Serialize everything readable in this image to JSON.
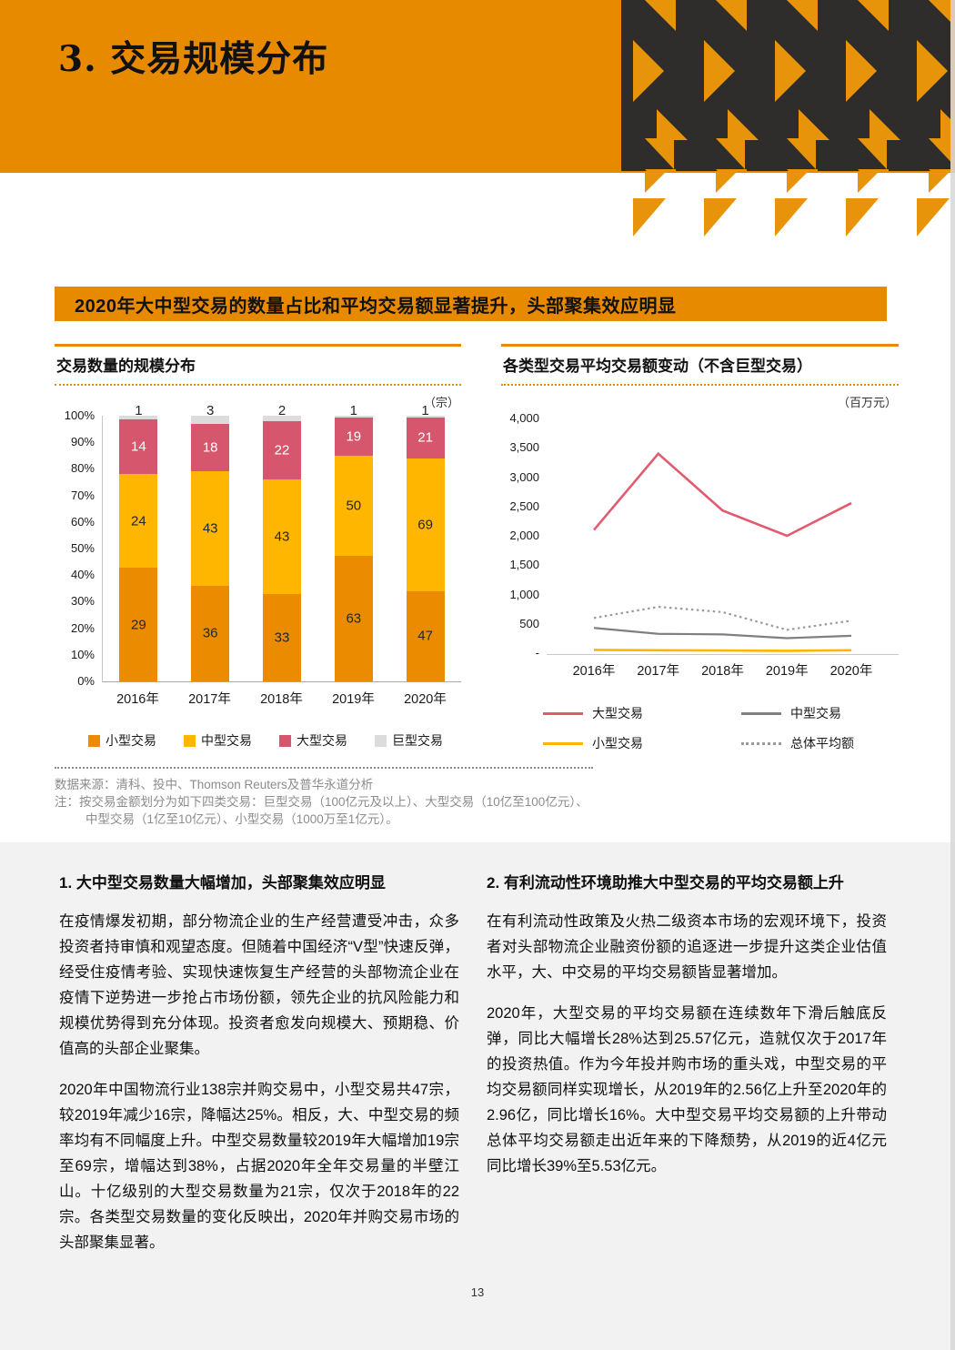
{
  "page": {
    "number": "13"
  },
  "header": {
    "title": "3. 交易规模分布"
  },
  "banner": {
    "text": "2020年大中型交易的数量占比和平均交易额显著提升，头部聚集效应明显"
  },
  "colors": {
    "accent_orange": "#E88A00",
    "pattern_dark": "#2E2D2C",
    "section_bg": "#F2F2F2"
  },
  "chart_data": [
    {
      "type": "bar",
      "stacked": true,
      "percent_axis": true,
      "title": "交易数量的规模分布",
      "unit": "（宗）",
      "categories": [
        "2016年",
        "2017年",
        "2018年",
        "2019年",
        "2020年"
      ],
      "series": [
        {
          "name": "小型交易",
          "color": "#EB8C00",
          "values": [
            29,
            36,
            33,
            63,
            47
          ]
        },
        {
          "name": "中型交易",
          "color": "#FFB600",
          "values": [
            24,
            43,
            43,
            50,
            69
          ]
        },
        {
          "name": "大型交易",
          "color": "#D6566D",
          "label_color": "#FFFFFF",
          "values": [
            14,
            18,
            22,
            19,
            21
          ]
        },
        {
          "name": "巨型交易",
          "color": "#DCDCDC",
          "values": [
            1,
            3,
            2,
            1,
            1
          ]
        }
      ],
      "yticks": [
        "100%",
        "90%",
        "80%",
        "70%",
        "60%",
        "50%",
        "40%",
        "30%",
        "20%",
        "10%",
        "0%"
      ],
      "ylim": [
        0,
        100
      ],
      "legend_position": "bottom",
      "grid": false
    },
    {
      "type": "line",
      "title": "各类型交易平均交易额变动（不含巨型交易）",
      "unit": "（百万元）",
      "x": [
        "2016年",
        "2017年",
        "2018年",
        "2019年",
        "2020年"
      ],
      "ylim": [
        0,
        4000
      ],
      "yticks": [
        "4,000",
        "3,500",
        "3,000",
        "2,500",
        "2,000",
        "1,500",
        "1,000",
        "500",
        "-"
      ],
      "series": [
        {
          "name": "大型交易",
          "color": "#E25A6E",
          "style": "solid",
          "width": 2.6,
          "values": [
            2100,
            3400,
            2430,
            2000,
            2557
          ]
        },
        {
          "name": "中型交易",
          "color": "#7F7F7F",
          "style": "solid",
          "width": 2.2,
          "values": [
            430,
            330,
            320,
            256,
            296
          ]
        },
        {
          "name": "小型交易",
          "color": "#FFB600",
          "style": "solid",
          "width": 2.6,
          "values": [
            55,
            50,
            45,
            40,
            50
          ]
        },
        {
          "name": "总体平均额",
          "color": "#9A9A9A",
          "style": "dotted",
          "width": 2.2,
          "values": [
            600,
            790,
            700,
            398,
            553
          ]
        }
      ],
      "legend_position": "bottom",
      "grid": false
    }
  ],
  "notes": {
    "source": "数据来源：清科、投中、Thomson Reuters及普华永道分析",
    "note_line1": "注：按交易金额划分为如下四类交易：巨型交易（100亿元及以上）、大型交易（10亿至100亿元）、",
    "note_line2": "中型交易（1亿至10亿元）、小型交易（1000万至1亿元）。"
  },
  "sections": [
    {
      "heading": "1. 大中型交易数量大幅增加，头部聚集效应明显",
      "paragraphs": [
        "在疫情爆发初期，部分物流企业的生产经营遭受冲击，众多投资者持审慎和观望态度。但随着中国经济“V型”快速反弹，经受住疫情考验、实现快速恢复生产经营的头部物流企业在疫情下逆势进一步抢占市场份额，领先企业的抗风险能力和规模优势得到充分体现。投资者愈发向规模大、预期稳、价值高的头部企业聚集。",
        "2020年中国物流行业138宗并购交易中，小型交易共47宗，较2019年减少16宗，降幅达25%。相反，大、中型交易的频率均有不同幅度上升。中型交易数量较2019年大幅增加19宗至69宗，增幅达到38%，占据2020年全年交易量的半壁江山。十亿级别的大型交易数量为21宗，仅次于2018年的22宗。各类型交易数量的变化反映出，2020年并购交易市场的头部聚集显著。"
      ]
    },
    {
      "heading": "2. 有利流动性环境助推大中型交易的平均交易额上升",
      "paragraphs": [
        "在有利流动性政策及火热二级资本市场的宏观环境下，投资者对头部物流企业融资份额的追逐进一步提升这类企业估值水平，大、中交易的平均交易额皆显著增加。",
        "2020年，大型交易的平均交易额在连续数年下滑后触底反弹，同比大幅增长28%达到25.57亿元，造就仅次于2017年的投资热值。作为今年投并购市场的重头戏，中型交易的平均交易额同样实现增长，从2019年的2.56亿上升至2020年的2.96亿，同比增长16%。大中型交易平均交易额的上升带动总体平均交易额走出近年来的下降颓势，从2019的近4亿元同比增长39%至5.53亿元。"
      ]
    }
  ]
}
